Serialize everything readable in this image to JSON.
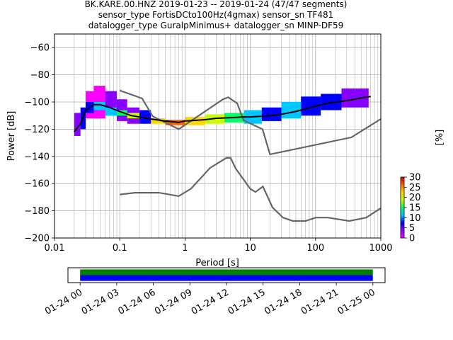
{
  "header": {
    "title_lines": [
      "BK.KARE.00.HNZ   2019-01-23 -- 2019-01-24  (47/47 segments)",
      "sensor_type FortisDCto100Hz(4gmax) sensor_sn TF481",
      "datalogger_type GuralpMinimus+ datalogger_sn MINP-DF59"
    ]
  },
  "chart_data": [
    {
      "type": "heatmap",
      "title": "",
      "xlabel": "Period [s]",
      "ylabel": "Power [dB]",
      "xscale": "log",
      "xlim": [
        0.01,
        1000
      ],
      "ylim": [
        -200,
        -50
      ],
      "x_ticks": [
        {
          "v": 0.01,
          "label": "0.01"
        },
        {
          "v": 0.1,
          "label": "0.1"
        },
        {
          "v": 1,
          "label": "1"
        },
        {
          "v": 10,
          "label": "10"
        },
        {
          "v": 100,
          "label": "100"
        },
        {
          "v": 1000,
          "label": "1000"
        }
      ],
      "y_ticks": [
        {
          "v": -60,
          "label": "−60"
        },
        {
          "v": -80,
          "label": "−80"
        },
        {
          "v": -100,
          "label": "−100"
        },
        {
          "v": -120,
          "label": "−120"
        },
        {
          "v": -140,
          "label": "−140"
        },
        {
          "v": -160,
          "label": "−160"
        },
        {
          "v": -180,
          "label": "−180"
        },
        {
          "v": -200,
          "label": "−200"
        }
      ],
      "grid": true,
      "colorbar": {
        "label": "[%]",
        "ticks": [
          0,
          5,
          10,
          15,
          20,
          25,
          30
        ],
        "tick_labels": [
          "0",
          "5",
          "10",
          "15",
          "20",
          "25",
          "30"
        ],
        "range": [
          0,
          30
        ],
        "colormap": [
          "#ff00ff",
          "#8800ff",
          "#0000ff",
          "#00c8ff",
          "#00ff66",
          "#c8ff00",
          "#ffd700",
          "#ff6600",
          "#cc0000"
        ]
      },
      "noise_models": {
        "NHNM": {
          "x": [
            0.1,
            0.22,
            0.32,
            0.8,
            3.8,
            4.6,
            6.3,
            7.9,
            15.4,
            20,
            354.8,
            1000
          ],
          "y": [
            -91.5,
            -97.4,
            -110.5,
            -120,
            -98,
            -96.5,
            -101,
            -113.5,
            -120,
            -138.5,
            -126,
            -112.5
          ]
        },
        "NLNM": {
          "x": [
            0.1,
            0.17,
            0.4,
            0.8,
            1.24,
            2.4,
            4.3,
            5,
            6,
            10,
            12,
            15.6,
            21.9,
            31.6,
            45,
            70,
            101,
            154,
            328,
            600,
            1000
          ],
          "y": [
            -168,
            -166.7,
            -166.7,
            -169.2,
            -163.7,
            -148.6,
            -141.1,
            -141.1,
            -149,
            -163.8,
            -166.2,
            -162.1,
            -177.5,
            -185,
            -187.5,
            -187.5,
            -185,
            -185,
            -187.5,
            -185,
            -178
          ]
        }
      },
      "series": [
        {
          "name": "",
          "x": [
            0.02,
            0.025,
            0.03,
            0.04,
            0.05,
            0.07,
            0.1,
            0.15,
            0.2,
            0.3,
            0.5,
            0.8,
            1,
            2,
            3,
            5,
            8,
            10,
            20,
            30,
            50,
            70,
            100,
            150,
            200,
            300,
            500,
            700
          ],
          "y": [
            -122,
            -116,
            -106,
            -102,
            -102,
            -104,
            -107,
            -110,
            -111,
            -112.5,
            -114,
            -115,
            -114,
            -113,
            -112,
            -111.5,
            -111,
            -111,
            -110,
            -109,
            -107,
            -105,
            -103,
            -101,
            -100,
            -99,
            -97,
            -96
          ]
        }
      ],
      "density_cells": [
        {
          "x": [
            0.02,
            0.025
          ],
          "y": [
            -125,
            -108
          ],
          "pct": 3
        },
        {
          "x": [
            0.025,
            0.03
          ],
          "y": [
            -120,
            -104
          ],
          "pct": 6
        },
        {
          "x": [
            0.03,
            0.04
          ],
          "y": [
            -112,
            -92
          ],
          "pct": 1
        },
        {
          "x": [
            0.03,
            0.04
          ],
          "y": [
            -108,
            -100
          ],
          "pct": 9
        },
        {
          "x": [
            0.04,
            0.06
          ],
          "y": [
            -112,
            -88
          ],
          "pct": 1
        },
        {
          "x": [
            0.04,
            0.06
          ],
          "y": [
            -106,
            -100
          ],
          "pct": 12
        },
        {
          "x": [
            0.06,
            0.09
          ],
          "y": [
            -110,
            -92
          ],
          "pct": 2
        },
        {
          "x": [
            0.06,
            0.09
          ],
          "y": [
            -110,
            -104
          ],
          "pct": 10
        },
        {
          "x": [
            0.09,
            0.13
          ],
          "y": [
            -114,
            -98
          ],
          "pct": 3
        },
        {
          "x": [
            0.09,
            0.13
          ],
          "y": [
            -110,
            -106
          ],
          "pct": 14
        },
        {
          "x": [
            0.13,
            0.2
          ],
          "y": [
            -116,
            -104
          ],
          "pct": 5
        },
        {
          "x": [
            0.13,
            0.2
          ],
          "y": [
            -112,
            -108
          ],
          "pct": 18
        },
        {
          "x": [
            0.2,
            0.3
          ],
          "y": [
            -116,
            -106
          ],
          "pct": 7
        },
        {
          "x": [
            0.3,
            0.5
          ],
          "y": [
            -116,
            -112
          ],
          "pct": 22
        },
        {
          "x": [
            0.5,
            1
          ],
          "y": [
            -117,
            -113
          ],
          "pct": 28
        },
        {
          "x": [
            1,
            2
          ],
          "y": [
            -117,
            -111
          ],
          "pct": 24
        },
        {
          "x": [
            2,
            4
          ],
          "y": [
            -116,
            -109
          ],
          "pct": 19
        },
        {
          "x": [
            4,
            8
          ],
          "y": [
            -115,
            -108
          ],
          "pct": 16
        },
        {
          "x": [
            8,
            15
          ],
          "y": [
            -116,
            -106
          ],
          "pct": 10
        },
        {
          "x": [
            15,
            30
          ],
          "y": [
            -114,
            -104
          ],
          "pct": 9
        },
        {
          "x": [
            30,
            60
          ],
          "y": [
            -112,
            -100
          ],
          "pct": 11
        },
        {
          "x": [
            60,
            120
          ],
          "y": [
            -110,
            -96
          ],
          "pct": 8
        },
        {
          "x": [
            120,
            250
          ],
          "y": [
            -106,
            -94
          ],
          "pct": 6
        },
        {
          "x": [
            250,
            650
          ],
          "y": [
            -104,
            -90
          ],
          "pct": 3
        }
      ]
    },
    {
      "type": "bar",
      "title": "",
      "xlim_hours": [
        -1,
        25
      ],
      "x_tick_labels": [
        "01-24 00",
        "01-24 03",
        "01-24 06",
        "01-24 09",
        "01-24 12",
        "01-24 15",
        "01-24 18",
        "01-24 21",
        "01-25 00"
      ],
      "x_tick_hours": [
        0,
        3,
        6,
        9,
        12,
        15,
        18,
        21,
        24
      ],
      "coverage_bars": [
        {
          "name": "",
          "start_hour": 0,
          "end_hour": 24,
          "color": "#008000"
        },
        {
          "name": "",
          "start_hour": 0,
          "end_hour": 24,
          "color": "#0000ff"
        }
      ]
    }
  ]
}
